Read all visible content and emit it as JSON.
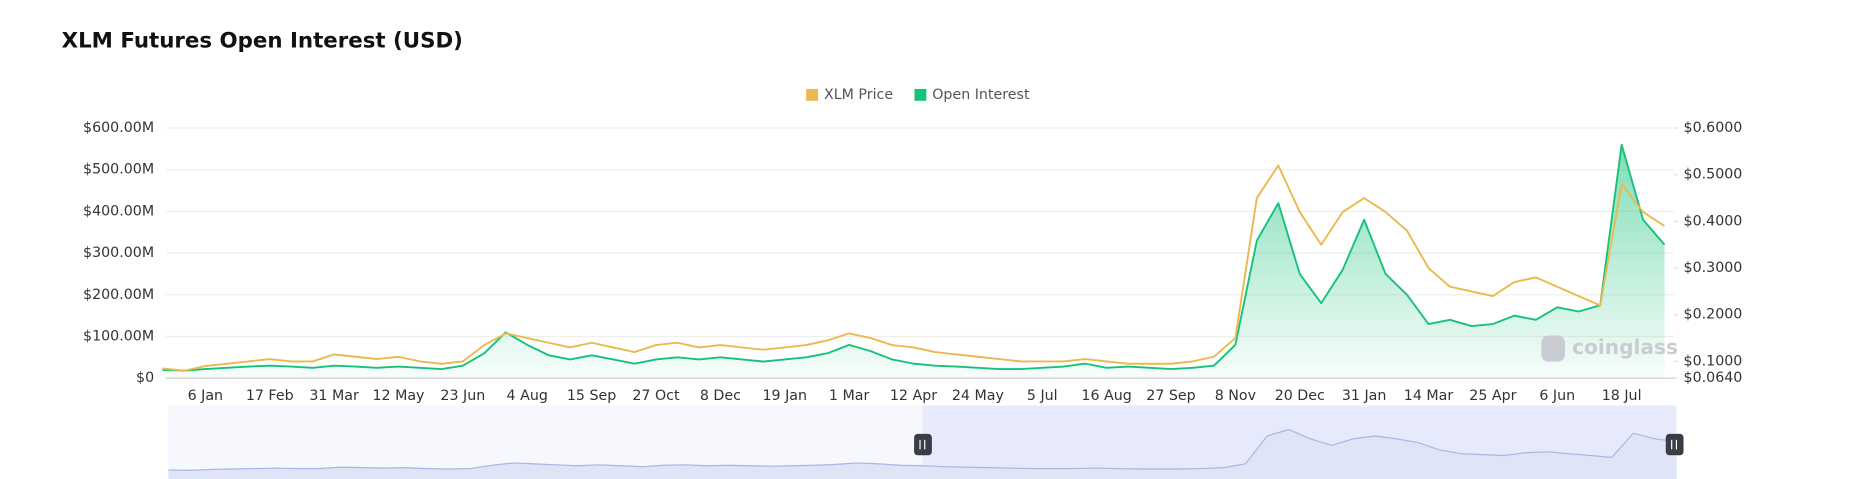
{
  "chart_data": {
    "type": "line",
    "title": "XLM Futures Open Interest (USD)",
    "watermark": "coinglass",
    "legend": "top",
    "categories": [
      null,
      null,
      "6 Jan",
      null,
      null,
      "17 Feb",
      null,
      null,
      "31 Mar",
      null,
      null,
      "12 May",
      null,
      null,
      "23 Jun",
      null,
      null,
      "4 Aug",
      null,
      null,
      "15 Sep",
      null,
      null,
      "27 Oct",
      null,
      null,
      "8 Dec",
      null,
      null,
      "19 Jan",
      null,
      null,
      "1 Mar",
      null,
      null,
      "12 Apr",
      null,
      null,
      "24 May",
      null,
      null,
      "5 Jul",
      null,
      null,
      "16 Aug",
      null,
      null,
      "27 Sep",
      null,
      null,
      "8 Nov",
      null,
      null,
      "20 Dec",
      null,
      null,
      "31 Jan",
      null,
      null,
      "14 Mar",
      null,
      null,
      "25 Apr",
      null,
      null,
      "6 Jun",
      null,
      null,
      "18 Jul",
      null,
      null
    ],
    "series": [
      {
        "name": "XLM Price",
        "color": "#eab94f",
        "axis": "y2",
        "values": [
          0.085,
          0.08,
          0.09,
          0.095,
          0.1,
          0.105,
          0.1,
          0.1,
          0.115,
          0.11,
          0.105,
          0.11,
          0.1,
          0.095,
          0.1,
          0.135,
          0.16,
          0.15,
          0.14,
          0.13,
          0.14,
          0.13,
          0.12,
          0.135,
          0.14,
          0.13,
          0.135,
          0.13,
          0.125,
          0.13,
          0.135,
          0.145,
          0.16,
          0.15,
          0.135,
          0.13,
          0.12,
          0.115,
          0.11,
          0.105,
          0.1,
          0.1,
          0.1,
          0.105,
          0.1,
          0.095,
          0.095,
          0.095,
          0.1,
          0.11,
          0.15,
          0.45,
          0.52,
          0.42,
          0.35,
          0.42,
          0.45,
          0.42,
          0.38,
          0.3,
          0.26,
          0.25,
          0.24,
          0.27,
          0.28,
          0.26,
          0.24,
          0.22,
          0.48,
          0.42,
          0.39
        ]
      },
      {
        "name": "Open Interest",
        "color": "#16c27a",
        "axis": "y",
        "values": [
          20,
          18,
          22,
          25,
          28,
          30,
          28,
          25,
          30,
          28,
          25,
          28,
          25,
          22,
          30,
          60,
          110,
          80,
          55,
          45,
          55,
          45,
          35,
          45,
          50,
          45,
          50,
          45,
          40,
          45,
          50,
          60,
          80,
          65,
          45,
          35,
          30,
          28,
          25,
          22,
          22,
          25,
          28,
          35,
          25,
          28,
          25,
          22,
          25,
          30,
          80,
          330,
          420,
          250,
          180,
          260,
          380,
          250,
          200,
          130,
          140,
          125,
          130,
          150,
          140,
          170,
          160,
          175,
          560,
          380,
          320
        ]
      }
    ],
    "ylim": [
      0,
      600
    ],
    "yticks": [
      {
        "value": 0,
        "label": "$0"
      },
      {
        "value": 100,
        "label": "$100.00M"
      },
      {
        "value": 200,
        "label": "$200.00M"
      },
      {
        "value": 300,
        "label": "$300.00M"
      },
      {
        "value": 400,
        "label": "$400.00M"
      },
      {
        "value": 500,
        "label": "$500.00M"
      },
      {
        "value": 600,
        "label": "$600.00M"
      }
    ],
    "y2lim": [
      0.064,
      0.6
    ],
    "y2ticks": [
      {
        "value": 0.064,
        "label": "$0.0640"
      },
      {
        "value": 0.1,
        "label": "$0.1000"
      },
      {
        "value": 0.2,
        "label": "$0.2000"
      },
      {
        "value": 0.3,
        "label": "$0.3000"
      },
      {
        "value": 0.4,
        "label": "$0.4000"
      },
      {
        "value": 0.5,
        "label": "$0.5000"
      },
      {
        "value": 0.6,
        "label": "$0.6000"
      }
    ],
    "grid": true
  }
}
